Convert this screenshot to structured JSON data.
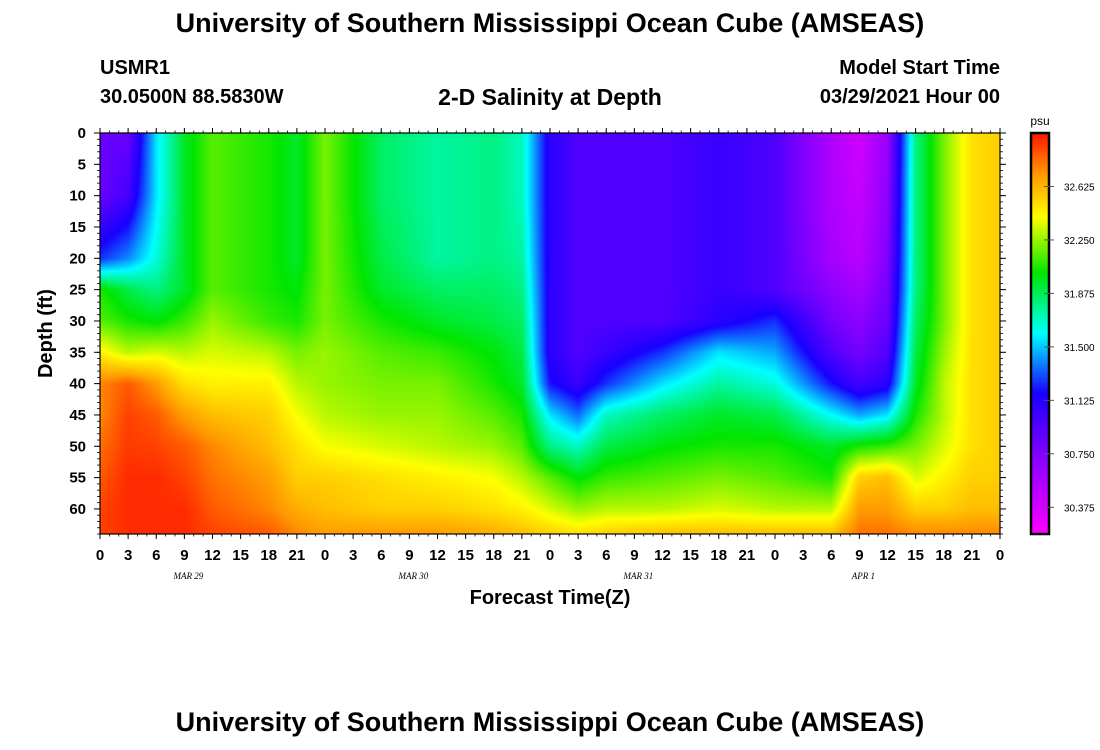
{
  "header": {
    "title": "University of Southern Mississippi Ocean Cube (AMSEAS)",
    "station": "USMR1",
    "coords": "30.0500N  88.5830W",
    "plot_title": "2-D Salinity at Depth",
    "start_label": "Model Start Time",
    "start_value": "03/29/2021 Hour 00"
  },
  "footer": {
    "title": "University of Southern Mississippi Ocean Cube (AMSEAS)"
  },
  "chart_data": {
    "type": "heatmap",
    "title": "2-D Salinity at Depth",
    "xlabel": "Forecast Time(Z)",
    "ylabel": "Depth (ft)",
    "x_hours_range": [
      0,
      96
    ],
    "x_ticks": [
      "0",
      "3",
      "6",
      "9",
      "12",
      "15",
      "18",
      "21",
      "0",
      "3",
      "6",
      "9",
      "12",
      "15",
      "18",
      "21",
      "0",
      "3",
      "6",
      "9",
      "12",
      "15",
      "18",
      "21",
      "0",
      "3",
      "6",
      "9",
      "12",
      "15",
      "18",
      "21",
      "0"
    ],
    "date_labels": [
      {
        "label": "MAR 29",
        "hour": 9
      },
      {
        "label": "MAR 30",
        "hour": 33
      },
      {
        "label": "MAR 31",
        "hour": 57
      },
      {
        "label": "APR 1",
        "hour": 81
      }
    ],
    "ylim": [
      0,
      64
    ],
    "y_ticks": [
      "0",
      "5",
      "10",
      "15",
      "20",
      "25",
      "30",
      "35",
      "40",
      "45",
      "50",
      "55",
      "60"
    ],
    "colorbar": {
      "unit": "psu",
      "range": [
        30.1875,
        33.0
      ],
      "tick_labels": [
        "32.625",
        "32.250",
        "31.875",
        "31.500",
        "31.125",
        "30.750",
        "30.375"
      ]
    },
    "grid_depths": [
      0,
      10,
      20,
      25,
      30,
      35,
      40,
      45,
      50,
      55,
      60,
      64
    ],
    "grid_hours": [
      0,
      3,
      6,
      9,
      12,
      18,
      21,
      24,
      30,
      36,
      42,
      45,
      48,
      51,
      54,
      60,
      66,
      72,
      78,
      81,
      84,
      87,
      90,
      93,
      96
    ],
    "salinity": [
      [
        30.85,
        30.85,
        31.55,
        31.95,
        32.15,
        32.05,
        31.95,
        32.2,
        31.85,
        31.75,
        31.8,
        31.7,
        31.1,
        30.95,
        30.95,
        30.95,
        31.05,
        30.95,
        30.55,
        30.4,
        30.65,
        31.8,
        32.2,
        32.5,
        32.55
      ],
      [
        30.85,
        31.0,
        31.55,
        31.95,
        32.15,
        32.05,
        31.95,
        32.2,
        31.85,
        31.75,
        31.8,
        31.7,
        31.1,
        30.95,
        30.95,
        30.95,
        31.05,
        30.95,
        30.55,
        30.45,
        30.7,
        31.8,
        32.2,
        32.5,
        32.55
      ],
      [
        31.25,
        31.4,
        31.65,
        31.95,
        32.15,
        32.05,
        31.95,
        32.2,
        31.9,
        31.75,
        31.8,
        31.75,
        31.1,
        30.95,
        30.95,
        30.95,
        31.05,
        30.95,
        30.6,
        30.5,
        30.75,
        31.8,
        32.2,
        32.5,
        32.55
      ],
      [
        32.05,
        31.9,
        31.8,
        31.95,
        32.15,
        32.05,
        32.0,
        32.2,
        31.95,
        31.85,
        31.85,
        31.8,
        31.1,
        30.95,
        30.95,
        30.95,
        31.05,
        30.95,
        30.7,
        30.6,
        30.8,
        31.8,
        32.2,
        32.5,
        32.55
      ],
      [
        32.15,
        32.05,
        32.0,
        32.1,
        32.25,
        32.1,
        32.05,
        32.2,
        32.05,
        31.95,
        31.9,
        31.85,
        31.1,
        30.95,
        30.95,
        30.95,
        31.1,
        31.25,
        30.8,
        30.7,
        30.85,
        31.85,
        32.2,
        32.5,
        32.55
      ],
      [
        32.45,
        32.3,
        32.35,
        32.3,
        32.35,
        32.3,
        32.2,
        32.25,
        32.15,
        32.1,
        32.0,
        31.9,
        31.1,
        30.95,
        31.05,
        31.25,
        31.55,
        31.45,
        30.95,
        30.8,
        30.95,
        31.9,
        32.25,
        32.5,
        32.55
      ],
      [
        32.75,
        32.85,
        32.7,
        32.5,
        32.45,
        32.45,
        32.3,
        32.25,
        32.2,
        32.2,
        32.05,
        31.95,
        31.2,
        31.05,
        31.25,
        31.55,
        31.75,
        31.65,
        31.2,
        31.0,
        31.1,
        31.95,
        32.3,
        32.5,
        32.55
      ],
      [
        32.75,
        32.9,
        32.85,
        32.7,
        32.6,
        32.55,
        32.4,
        32.3,
        32.25,
        32.25,
        32.15,
        32.05,
        31.55,
        31.35,
        31.7,
        31.85,
        31.95,
        31.9,
        31.6,
        31.45,
        31.55,
        32.05,
        32.3,
        32.5,
        32.55
      ],
      [
        32.8,
        32.92,
        32.9,
        32.85,
        32.75,
        32.6,
        32.5,
        32.4,
        32.35,
        32.3,
        32.25,
        32.15,
        31.8,
        31.7,
        31.9,
        32.0,
        32.05,
        32.05,
        31.95,
        32.05,
        32.1,
        32.2,
        32.35,
        32.5,
        32.55
      ],
      [
        32.85,
        32.95,
        32.95,
        32.9,
        32.8,
        32.7,
        32.55,
        32.55,
        32.5,
        32.45,
        32.4,
        32.3,
        32.15,
        32.0,
        32.1,
        32.15,
        32.2,
        32.15,
        32.05,
        32.55,
        32.6,
        32.35,
        32.45,
        32.55,
        32.55
      ],
      [
        32.9,
        32.95,
        32.95,
        32.95,
        32.85,
        32.75,
        32.65,
        32.6,
        32.55,
        32.55,
        32.5,
        32.45,
        32.35,
        32.25,
        32.3,
        32.3,
        32.35,
        32.3,
        32.3,
        32.7,
        32.7,
        32.55,
        32.55,
        32.6,
        32.6
      ],
      [
        32.9,
        32.95,
        32.95,
        32.95,
        32.9,
        32.85,
        32.75,
        32.7,
        32.7,
        32.7,
        32.65,
        32.6,
        32.55,
        32.5,
        32.55,
        32.6,
        32.6,
        32.6,
        32.6,
        32.8,
        32.8,
        32.75,
        32.75,
        32.75,
        32.75
      ]
    ]
  }
}
